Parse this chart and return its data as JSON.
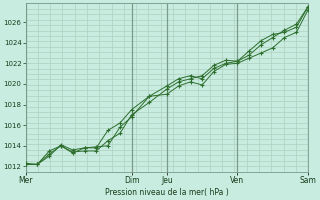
{
  "bg_color": "#c8ede0",
  "grid_color": "#b0d0c0",
  "day_sep_color": "#7a9a8a",
  "line_color": "#2d6e2d",
  "marker_color": "#2d6e2d",
  "xlabel_text": "Pression niveau de la mer( hPa )",
  "ylim": [
    1011.5,
    1027.8
  ],
  "yticks": [
    1012,
    1014,
    1016,
    1018,
    1020,
    1022,
    1024,
    1026
  ],
  "day_labels": [
    "Mer",
    "Dim",
    "Jeu",
    "Ven",
    "Sam"
  ],
  "day_positions": [
    0.0,
    3.0,
    4.0,
    6.0,
    8.0
  ],
  "series1_x": [
    0.0,
    0.33,
    0.67,
    1.0,
    1.33,
    1.67,
    2.0,
    2.33,
    2.67,
    3.0,
    3.5,
    4.0,
    4.33,
    4.67,
    5.0,
    5.33,
    5.67,
    6.0,
    6.33,
    6.67,
    7.0,
    7.33,
    7.67,
    8.0
  ],
  "series1_y": [
    1012.3,
    1012.2,
    1013.0,
    1014.1,
    1013.6,
    1013.8,
    1013.9,
    1014.0,
    1015.8,
    1016.8,
    1018.8,
    1019.0,
    1019.8,
    1020.2,
    1019.9,
    1021.2,
    1021.9,
    1022.0,
    1022.5,
    1023.0,
    1023.5,
    1024.5,
    1025.0,
    1027.2
  ],
  "series2_x": [
    0.0,
    0.33,
    0.67,
    1.0,
    1.33,
    1.67,
    2.0,
    2.33,
    2.67,
    3.0,
    3.5,
    4.0,
    4.33,
    4.67,
    5.0,
    5.33,
    5.67,
    6.0,
    6.33,
    6.67,
    7.0,
    7.33,
    7.67,
    8.0
  ],
  "series2_y": [
    1012.2,
    1012.2,
    1013.2,
    1014.0,
    1013.4,
    1013.5,
    1013.5,
    1014.5,
    1015.2,
    1017.0,
    1018.2,
    1019.5,
    1020.2,
    1020.5,
    1020.8,
    1021.8,
    1022.3,
    1022.2,
    1022.8,
    1023.8,
    1024.5,
    1025.2,
    1025.8,
    1027.5
  ],
  "series3_x": [
    0.0,
    0.33,
    0.67,
    1.0,
    1.33,
    1.67,
    2.0,
    2.33,
    2.67,
    3.0,
    3.5,
    4.0,
    4.33,
    4.67,
    5.0,
    5.33,
    5.67,
    6.0,
    6.33,
    6.67,
    7.0,
    7.33,
    7.67,
    8.0
  ],
  "series3_y": [
    1012.2,
    1012.2,
    1013.5,
    1014.0,
    1013.3,
    1013.8,
    1013.8,
    1015.5,
    1016.2,
    1017.5,
    1018.8,
    1019.8,
    1020.5,
    1020.8,
    1020.5,
    1021.5,
    1022.0,
    1022.2,
    1023.2,
    1024.2,
    1024.8,
    1025.0,
    1025.5,
    1027.5
  ],
  "n_hgrid": 32,
  "n_vgrid": 24,
  "xlim": [
    0,
    8
  ]
}
